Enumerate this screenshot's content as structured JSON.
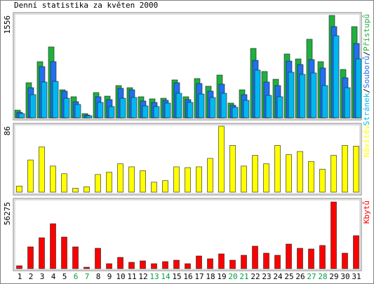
{
  "chart_data": [
    {
      "type": "bar",
      "title": "Denní statistika za květen 2000",
      "ylim": [
        0,
        1556
      ],
      "yticks": [
        1556
      ],
      "legend_separator": "/",
      "series": [
        {
          "name": "Přístupů",
          "color": "#20b040",
          "values": [
            117,
            533,
            853,
            1077,
            426,
            320,
            64,
            384,
            330,
            490,
            458,
            320,
            288,
            298,
            576,
            320,
            597,
            480,
            650,
            224,
            426,
            1055,
            704,
            586,
            970,
            895,
            1194,
            853,
            1556,
            735,
            1386
          ]
        },
        {
          "name": "Souborů",
          "color": "#2070f0",
          "values": [
            85,
            458,
            778,
            853,
            405,
            245,
            43,
            320,
            277,
            448,
            426,
            256,
            234,
            266,
            533,
            277,
            522,
            405,
            512,
            192,
            352,
            874,
            544,
            490,
            863,
            810,
            885,
            757,
            1386,
            608,
            1130
          ]
        },
        {
          "name": "Stránek",
          "color": "#00b8f0",
          "values": [
            64,
            352,
            544,
            554,
            298,
            203,
            32,
            234,
            171,
            298,
            309,
            181,
            171,
            224,
            373,
            234,
            362,
            309,
            373,
            160,
            266,
            725,
            341,
            320,
            693,
            661,
            682,
            490,
            1247,
            458,
            895
          ]
        }
      ]
    },
    {
      "type": "bar",
      "ylim": [
        0,
        86
      ],
      "yticks": [
        86
      ],
      "series": [
        {
          "name": "Návštěv",
          "color": "#ffff00",
          "values": [
            8,
            42,
            59,
            34,
            24,
            5,
            7,
            23,
            26,
            37,
            33,
            28,
            13,
            15,
            33,
            32,
            33,
            44,
            86,
            61,
            34,
            48,
            37,
            61,
            49,
            53,
            40,
            30,
            48,
            61,
            60
          ]
        }
      ]
    },
    {
      "type": "bar",
      "ylim": [
        0,
        56275
      ],
      "yticks": [
        56275
      ],
      "series": [
        {
          "name": "Kbytů",
          "color": "#ff0000",
          "values": [
            2370,
            18350,
            26050,
            37900,
            26650,
            18350,
            1180,
            17170,
            4140,
            9470,
            5330,
            6510,
            4140,
            5920,
            7100,
            4140,
            10660,
            8290,
            12430,
            7100,
            11250,
            18950,
            13020,
            11250,
            20720,
            17170,
            16580,
            19540,
            56275,
            13020,
            27830
          ]
        }
      ],
      "categories": [
        "1",
        "2",
        "3",
        "4",
        "5",
        "6",
        "7",
        "8",
        "9",
        "10",
        "11",
        "12",
        "13",
        "14",
        "15",
        "16",
        "17",
        "18",
        "19",
        "20",
        "21",
        "22",
        "23",
        "24",
        "25",
        "26",
        "27",
        "28",
        "29",
        "30",
        "31"
      ],
      "category_colors": [
        "#000000",
        "#000000",
        "#000000",
        "#000000",
        "#000000",
        "#00a040",
        "#00a040",
        "#000000",
        "#000000",
        "#000000",
        "#000000",
        "#000000",
        "#00a040",
        "#00a040",
        "#000000",
        "#000000",
        "#000000",
        "#000000",
        "#000000",
        "#00a040",
        "#00a040",
        "#000000",
        "#000000",
        "#000000",
        "#000000",
        "#000000",
        "#00a040",
        "#00a040",
        "#000000",
        "#000000",
        "#000000"
      ]
    }
  ]
}
